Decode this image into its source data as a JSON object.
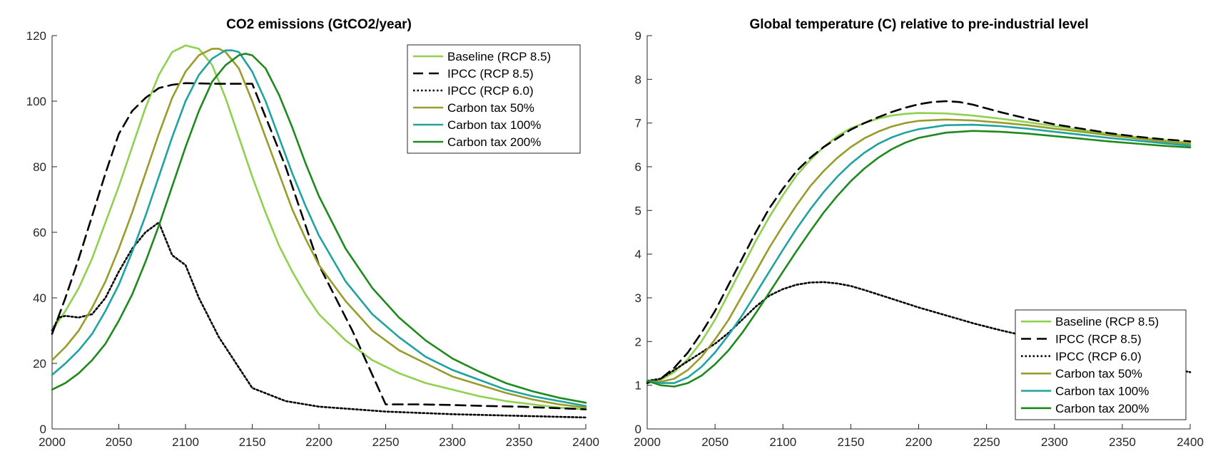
{
  "chart_data": [
    {
      "type": "line",
      "title": "CO2 emissions (GtCO2/year)",
      "xlabel": "",
      "ylabel": "",
      "xlim": [
        2000,
        2400
      ],
      "ylim": [
        0,
        120
      ],
      "xticks": [
        2000,
        2050,
        2100,
        2150,
        2200,
        2250,
        2300,
        2350,
        2400
      ],
      "yticks": [
        0,
        20,
        40,
        60,
        80,
        100,
        120
      ],
      "grid": false,
      "legend": "top-right",
      "series": [
        {
          "name": "Baseline (RCP 8.5)",
          "color": "#8fd14f",
          "style": "solid",
          "x": [
            2000,
            2010,
            2020,
            2030,
            2040,
            2050,
            2060,
            2070,
            2080,
            2090,
            2100,
            2110,
            2120,
            2130,
            2140,
            2150,
            2160,
            2170,
            2180,
            2190,
            2200,
            2220,
            2240,
            2260,
            2280,
            2300,
            2320,
            2340,
            2360,
            2380,
            2400
          ],
          "y": [
            30,
            36,
            43,
            52,
            63,
            74,
            86,
            98,
            108,
            115,
            117,
            116,
            111,
            101,
            89,
            77,
            66,
            56,
            48,
            41,
            35,
            27,
            21,
            17,
            14,
            12,
            10,
            8.5,
            7.5,
            6.5,
            6
          ]
        },
        {
          "name": "IPCC (RCP 8.5)",
          "color": "#000000",
          "style": "dashed",
          "x": [
            2000,
            2010,
            2020,
            2030,
            2040,
            2050,
            2060,
            2070,
            2080,
            2090,
            2100,
            2125,
            2150,
            2175,
            2200,
            2225,
            2250,
            2275,
            2300,
            2325,
            2350,
            2375,
            2400
          ],
          "y": [
            29,
            40,
            52,
            65,
            78,
            90,
            97,
            101,
            104,
            105,
            105.5,
            105.3,
            105.3,
            80,
            50,
            30,
            7.5,
            7.5,
            7.3,
            7,
            6.8,
            6.4,
            6
          ]
        },
        {
          "name": "IPCC (RCP 6.0)",
          "color": "#000000",
          "style": "dotted",
          "x": [
            2000,
            2005,
            2010,
            2020,
            2030,
            2040,
            2050,
            2060,
            2070,
            2080,
            2090,
            2100,
            2110,
            2125,
            2150,
            2175,
            2200,
            2250,
            2300,
            2350,
            2400
          ],
          "y": [
            30,
            34,
            34.5,
            34,
            35,
            40,
            48,
            55,
            60,
            63,
            53,
            50,
            40,
            28,
            12.5,
            8.5,
            6.8,
            5.3,
            4.5,
            4,
            3.5
          ]
        },
        {
          "name": "Carbon tax 50%",
          "color": "#999c2b",
          "style": "solid",
          "x": [
            2000,
            2010,
            2020,
            2030,
            2040,
            2050,
            2060,
            2070,
            2080,
            2090,
            2100,
            2110,
            2120,
            2125,
            2130,
            2140,
            2150,
            2160,
            2170,
            2180,
            2190,
            2200,
            2220,
            2240,
            2260,
            2280,
            2300,
            2320,
            2340,
            2360,
            2380,
            2400
          ],
          "y": [
            21,
            25,
            30,
            37,
            45,
            55,
            66,
            78,
            90,
            101,
            109,
            114,
            116,
            116,
            115,
            110,
            100,
            89,
            78,
            67,
            58,
            50,
            39,
            30,
            24,
            20,
            16,
            13.5,
            11,
            9,
            7.5,
            6.5
          ]
        },
        {
          "name": "Carbon tax 100%",
          "color": "#20a3a0",
          "style": "solid",
          "x": [
            2000,
            2010,
            2020,
            2030,
            2040,
            2050,
            2060,
            2070,
            2080,
            2090,
            2100,
            2110,
            2120,
            2130,
            2135,
            2140,
            2150,
            2160,
            2170,
            2180,
            2190,
            2200,
            2220,
            2240,
            2260,
            2280,
            2300,
            2320,
            2340,
            2360,
            2380,
            2400
          ],
          "y": [
            16.5,
            20,
            24,
            29,
            36,
            44,
            54,
            65,
            77,
            89,
            100,
            108,
            113,
            115.5,
            115.5,
            115,
            109,
            100,
            89,
            78,
            68,
            59,
            45,
            35,
            28,
            22,
            18,
            15,
            12,
            10,
            8.5,
            7
          ]
        },
        {
          "name": "Carbon tax 200%",
          "color": "#1e8a1e",
          "style": "solid",
          "x": [
            2000,
            2010,
            2020,
            2030,
            2040,
            2050,
            2060,
            2070,
            2080,
            2090,
            2100,
            2110,
            2120,
            2130,
            2140,
            2145,
            2150,
            2160,
            2170,
            2180,
            2190,
            2200,
            2220,
            2240,
            2260,
            2280,
            2300,
            2320,
            2340,
            2360,
            2380,
            2400
          ],
          "y": [
            12,
            14,
            17,
            21,
            26,
            33,
            41,
            51,
            62,
            74,
            86,
            97,
            106,
            111,
            114,
            114.5,
            114,
            110,
            102,
            92,
            81,
            71,
            55,
            43,
            34,
            27,
            21.5,
            17.5,
            14,
            11.5,
            9.5,
            8
          ]
        }
      ]
    },
    {
      "type": "line",
      "title": "Global temperature (C) relative to pre-industrial level",
      "xlabel": "",
      "ylabel": "",
      "xlim": [
        2000,
        2400
      ],
      "ylim": [
        0,
        9
      ],
      "xticks": [
        2000,
        2050,
        2100,
        2150,
        2200,
        2250,
        2300,
        2350,
        2400
      ],
      "yticks": [
        0,
        1,
        2,
        3,
        4,
        5,
        6,
        7,
        8,
        9
      ],
      "grid": false,
      "legend": "bottom-right",
      "series": [
        {
          "name": "Baseline (RCP 8.5)",
          "color": "#8fd14f",
          "style": "solid",
          "x": [
            2000,
            2010,
            2020,
            2030,
            2040,
            2050,
            2060,
            2070,
            2080,
            2090,
            2100,
            2110,
            2120,
            2130,
            2140,
            2150,
            2160,
            2170,
            2180,
            2190,
            2200,
            2220,
            2240,
            2260,
            2280,
            2300,
            2320,
            2340,
            2360,
            2380,
            2400
          ],
          "y": [
            1.1,
            1.12,
            1.3,
            1.6,
            2.0,
            2.5,
            3.1,
            3.7,
            4.3,
            4.85,
            5.35,
            5.8,
            6.15,
            6.45,
            6.7,
            6.88,
            7.0,
            7.1,
            7.17,
            7.21,
            7.23,
            7.22,
            7.17,
            7.1,
            7.02,
            6.93,
            6.84,
            6.76,
            6.68,
            6.61,
            6.55
          ]
        },
        {
          "name": "IPCC (RCP 8.5)",
          "color": "#000000",
          "style": "dashed",
          "x": [
            2000,
            2010,
            2020,
            2030,
            2040,
            2050,
            2060,
            2070,
            2080,
            2090,
            2100,
            2110,
            2120,
            2130,
            2140,
            2150,
            2160,
            2170,
            2180,
            2190,
            2200,
            2210,
            2220,
            2230,
            2240,
            2260,
            2280,
            2300,
            2320,
            2340,
            2360,
            2380,
            2400
          ],
          "y": [
            1.05,
            1.15,
            1.4,
            1.75,
            2.2,
            2.7,
            3.3,
            3.9,
            4.5,
            5.05,
            5.5,
            5.9,
            6.2,
            6.45,
            6.65,
            6.85,
            7.0,
            7.13,
            7.25,
            7.35,
            7.43,
            7.48,
            7.5,
            7.48,
            7.42,
            7.25,
            7.1,
            6.97,
            6.87,
            6.77,
            6.69,
            6.63,
            6.58
          ]
        },
        {
          "name": "IPCC (RCP 6.0)",
          "color": "#000000",
          "style": "dotted",
          "x": [
            2000,
            2010,
            2020,
            2030,
            2040,
            2050,
            2060,
            2070,
            2080,
            2090,
            2100,
            2110,
            2120,
            2130,
            2140,
            2150,
            2160,
            2180,
            2200,
            2220,
            2240,
            2260,
            2280,
            2300,
            2320,
            2340,
            2360,
            2380,
            2400
          ],
          "y": [
            1.1,
            1.15,
            1.35,
            1.55,
            1.75,
            1.95,
            2.2,
            2.5,
            2.8,
            3.05,
            3.2,
            3.3,
            3.35,
            3.36,
            3.33,
            3.27,
            3.18,
            2.98,
            2.78,
            2.6,
            2.42,
            2.26,
            2.12,
            1.98,
            1.83,
            1.68,
            1.55,
            1.42,
            1.3
          ]
        },
        {
          "name": "Carbon tax 50%",
          "color": "#999c2b",
          "style": "solid",
          "x": [
            2000,
            2010,
            2020,
            2030,
            2040,
            2050,
            2060,
            2070,
            2080,
            2090,
            2100,
            2110,
            2120,
            2130,
            2140,
            2150,
            2160,
            2170,
            2180,
            2190,
            2200,
            2220,
            2240,
            2260,
            2280,
            2300,
            2320,
            2340,
            2360,
            2380,
            2400
          ],
          "y": [
            1.1,
            1.08,
            1.15,
            1.35,
            1.65,
            2.05,
            2.5,
            3.05,
            3.6,
            4.15,
            4.65,
            5.12,
            5.55,
            5.9,
            6.2,
            6.45,
            6.65,
            6.8,
            6.92,
            7.0,
            7.05,
            7.08,
            7.06,
            7.01,
            6.95,
            6.87,
            6.8,
            6.72,
            6.65,
            6.58,
            6.52
          ]
        },
        {
          "name": "Carbon tax 100%",
          "color": "#20a3a0",
          "style": "solid",
          "x": [
            2000,
            2010,
            2020,
            2030,
            2040,
            2050,
            2060,
            2070,
            2080,
            2090,
            2100,
            2110,
            2120,
            2130,
            2140,
            2150,
            2160,
            2170,
            2180,
            2190,
            2200,
            2220,
            2240,
            2260,
            2280,
            2300,
            2320,
            2340,
            2360,
            2380,
            2400
          ],
          "y": [
            1.1,
            1.05,
            1.05,
            1.18,
            1.42,
            1.75,
            2.15,
            2.6,
            3.1,
            3.6,
            4.1,
            4.58,
            5.02,
            5.42,
            5.77,
            6.07,
            6.32,
            6.52,
            6.67,
            6.78,
            6.86,
            6.95,
            6.96,
            6.93,
            6.87,
            6.8,
            6.73,
            6.66,
            6.6,
            6.54,
            6.48
          ]
        },
        {
          "name": "Carbon tax 200%",
          "color": "#1e8a1e",
          "style": "solid",
          "x": [
            2000,
            2010,
            2020,
            2030,
            2040,
            2050,
            2060,
            2070,
            2080,
            2090,
            2100,
            2110,
            2120,
            2130,
            2140,
            2150,
            2160,
            2170,
            2180,
            2190,
            2200,
            2220,
            2240,
            2260,
            2280,
            2300,
            2320,
            2340,
            2360,
            2380,
            2400
          ],
          "y": [
            1.1,
            1.0,
            0.97,
            1.05,
            1.22,
            1.48,
            1.8,
            2.2,
            2.65,
            3.12,
            3.6,
            4.07,
            4.52,
            4.95,
            5.33,
            5.67,
            5.96,
            6.2,
            6.4,
            6.55,
            6.66,
            6.78,
            6.82,
            6.8,
            6.76,
            6.7,
            6.64,
            6.58,
            6.53,
            6.48,
            6.44
          ]
        }
      ]
    }
  ]
}
